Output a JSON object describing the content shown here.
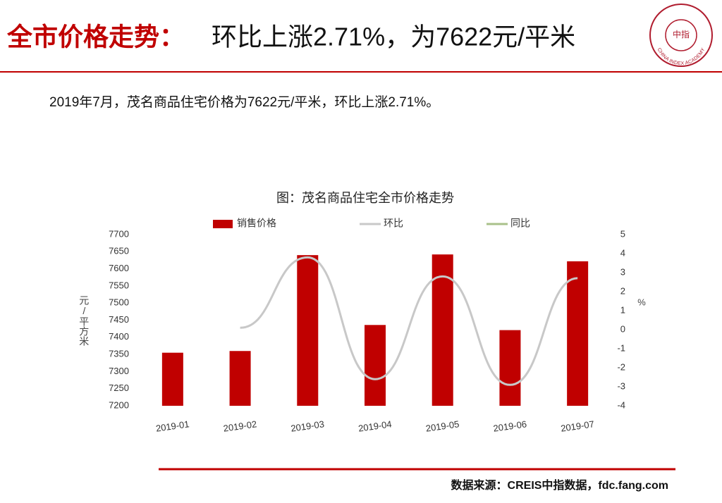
{
  "header": {
    "title_lead": "全市价格走势：",
    "title_rest": "环比上涨2.71%，为7622元/平米"
  },
  "logo": {
    "center": "中指",
    "ring": "CHINA INDEX ACADEMY"
  },
  "summary": "2019年7月，茂名商品住宅价格为7622元/平米，环比上涨2.71%。",
  "chart_data": {
    "type": "bar",
    "title": "图：茂名商品住宅全市价格走势",
    "categories": [
      "2019-01",
      "2019-02",
      "2019-03",
      "2019-04",
      "2019-05",
      "2019-06",
      "2019-07"
    ],
    "series": [
      {
        "name": "销售价格",
        "type": "bar",
        "color": "#c00000",
        "values": [
          7355,
          7360,
          7640,
          7436,
          7642,
          7421,
          7622
        ]
      },
      {
        "name": "环比",
        "type": "line",
        "axis": "y2",
        "color": "#c8c8c8",
        "values": [
          null,
          0.1,
          3.8,
          -2.6,
          2.8,
          -2.9,
          2.71
        ]
      },
      {
        "name": "同比",
        "type": "line",
        "axis": "y2",
        "color": "#a9c18a",
        "values": [
          null,
          null,
          null,
          null,
          null,
          null,
          null
        ]
      }
    ],
    "ylabel": "元/平方米",
    "y2label": "%",
    "ylim": [
      7200,
      7700
    ],
    "yticks": [
      7200,
      7250,
      7300,
      7350,
      7400,
      7450,
      7500,
      7550,
      7600,
      7650,
      7700
    ],
    "y2lim": [
      -4,
      5
    ],
    "y2ticks": [
      -4,
      -3,
      -2,
      -1,
      0,
      1,
      2,
      3,
      4,
      5
    ],
    "legend": "top"
  },
  "source": "数据来源：CREIS中指数据，fdc.fang.com"
}
